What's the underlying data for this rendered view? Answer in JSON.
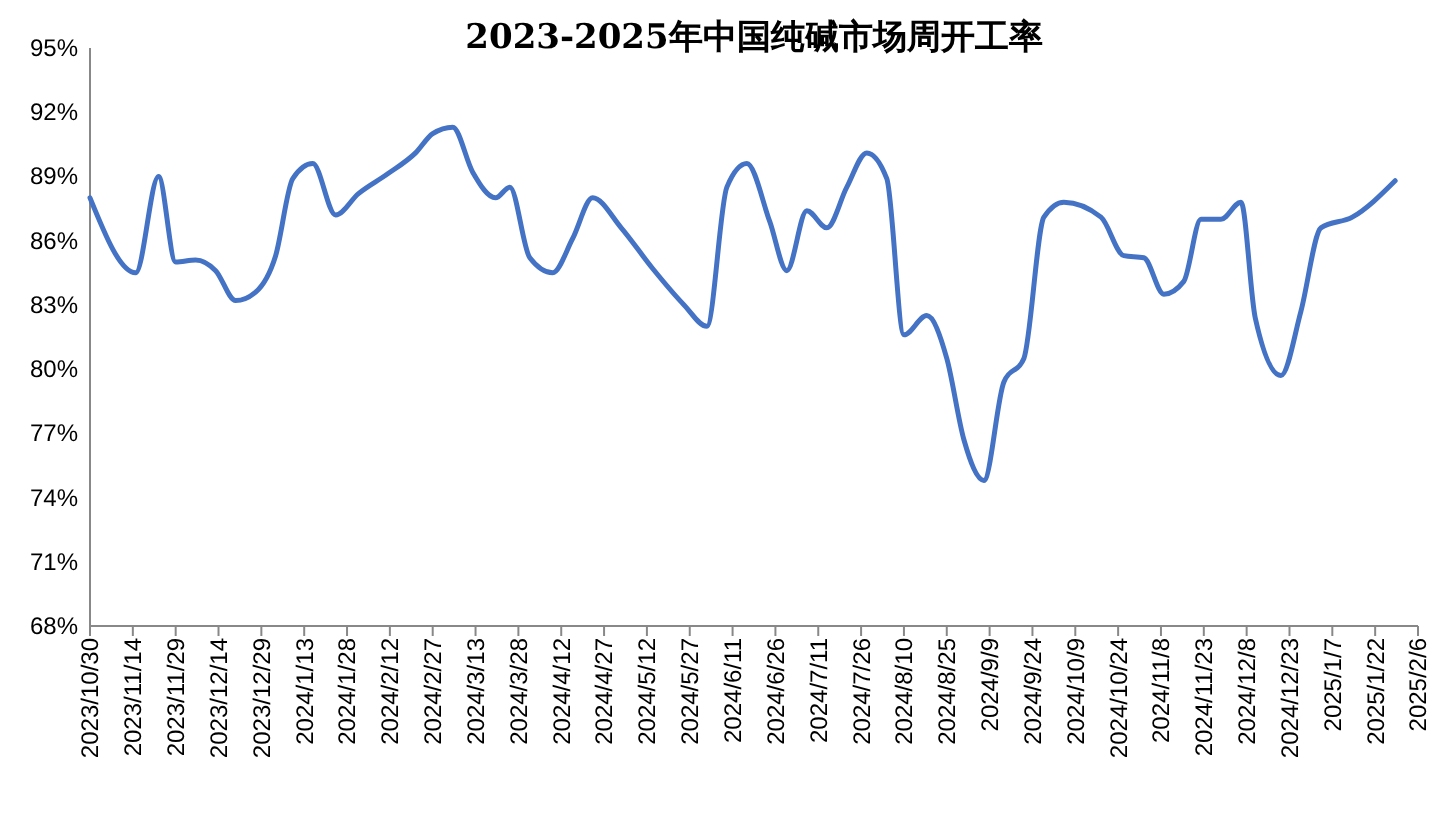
{
  "chart_data": {
    "type": "line",
    "title": "2023-2025年中国纯碱市场周开工率",
    "x": [
      "2023-10-30",
      "2023-11-15",
      "2023-11-23",
      "2023-11-29",
      "2023-12-06",
      "2023-12-13",
      "2023-12-20",
      "2023-12-27",
      "2024-01-03",
      "2024-01-09",
      "2024-01-16",
      "2024-01-24",
      "2024-02-01",
      "2024-02-11",
      "2024-02-21",
      "2024-02-27",
      "2024-03-05",
      "2024-03-12",
      "2024-03-20",
      "2024-03-25",
      "2024-04-01",
      "2024-04-09",
      "2024-04-16",
      "2024-04-23",
      "2024-05-03",
      "2024-05-14",
      "2024-05-25",
      "2024-06-02",
      "2024-06-09",
      "2024-06-16",
      "2024-06-24",
      "2024-06-30",
      "2024-07-07",
      "2024-07-14",
      "2024-07-21",
      "2024-07-28",
      "2024-08-04",
      "2024-08-10",
      "2024-08-18",
      "2024-08-25",
      "2024-08-31",
      "2024-09-07",
      "2024-09-14",
      "2024-09-21",
      "2024-09-28",
      "2024-10-05",
      "2024-10-18",
      "2024-10-26",
      "2024-11-02",
      "2024-11-09",
      "2024-11-16",
      "2024-11-22",
      "2024-11-29",
      "2024-12-06",
      "2024-12-11",
      "2024-12-20",
      "2024-12-27",
      "2025-01-03",
      "2025-01-14",
      "2025-01-29"
    ],
    "series": [
      {
        "color": "#4472c4",
        "values": [
          88.0,
          84.5,
          89.0,
          85.0,
          85.1,
          84.6,
          83.2,
          83.6,
          85.3,
          88.9,
          89.6,
          87.2,
          88.2,
          89.1,
          90.1,
          91.0,
          91.3,
          89.2,
          88.0,
          88.5,
          85.2,
          84.5,
          86.1,
          88.0,
          86.6,
          84.7,
          83.0,
          82.0,
          88.5,
          89.6,
          86.9,
          84.6,
          87.4,
          86.6,
          88.5,
          90.1,
          88.9,
          81.6,
          82.5,
          80.5,
          76.7,
          74.8,
          79.4,
          80.5,
          87.1,
          87.8,
          87.1,
          85.3,
          85.2,
          83.5,
          84.1,
          87.0,
          87.0,
          87.8,
          82.4,
          79.7,
          82.7,
          86.6,
          87.1,
          88.8
        ]
      }
    ],
    "xlim": [
      "2023-10-30",
      "2025-02-06"
    ],
    "xticks": [
      {
        "value": "2023-10-30",
        "label": "2023/10/30"
      },
      {
        "value": "2023-11-14",
        "label": "2023/11/14"
      },
      {
        "value": "2023-11-29",
        "label": "2023/11/29"
      },
      {
        "value": "2023-12-14",
        "label": "2023/12/14"
      },
      {
        "value": "2023-12-29",
        "label": "2023/12/29"
      },
      {
        "value": "2024-01-13",
        "label": "2024/1/13"
      },
      {
        "value": "2024-01-28",
        "label": "2024/1/28"
      },
      {
        "value": "2024-02-12",
        "label": "2024/2/12"
      },
      {
        "value": "2024-02-27",
        "label": "2024/2/27"
      },
      {
        "value": "2024-03-13",
        "label": "2024/3/13"
      },
      {
        "value": "2024-03-28",
        "label": "2024/3/28"
      },
      {
        "value": "2024-04-12",
        "label": "2024/4/12"
      },
      {
        "value": "2024-04-27",
        "label": "2024/4/27"
      },
      {
        "value": "2024-05-12",
        "label": "2024/5/12"
      },
      {
        "value": "2024-05-27",
        "label": "2024/5/27"
      },
      {
        "value": "2024-06-11",
        "label": "2024/6/11"
      },
      {
        "value": "2024-06-26",
        "label": "2024/6/26"
      },
      {
        "value": "2024-07-11",
        "label": "2024/7/11"
      },
      {
        "value": "2024-07-26",
        "label": "2024/7/26"
      },
      {
        "value": "2024-08-10",
        "label": "2024/8/10"
      },
      {
        "value": "2024-08-25",
        "label": "2024/8/25"
      },
      {
        "value": "2024-09-09",
        "label": "2024/9/9"
      },
      {
        "value": "2024-09-24",
        "label": "2024/9/24"
      },
      {
        "value": "2024-10-09",
        "label": "2024/10/9"
      },
      {
        "value": "2024-10-24",
        "label": "2024/10/24"
      },
      {
        "value": "2024-11-08",
        "label": "2024/11/8"
      },
      {
        "value": "2024-11-23",
        "label": "2024/11/23"
      },
      {
        "value": "2024-12-08",
        "label": "2024/12/8"
      },
      {
        "value": "2024-12-23",
        "label": "2024/12/23"
      },
      {
        "value": "2025-01-07",
        "label": "2025/1/7"
      },
      {
        "value": "2025-01-22",
        "label": "2025/1/22"
      },
      {
        "value": "2025-02-06",
        "label": "2025/2/6"
      }
    ],
    "ylim": [
      68,
      95
    ],
    "yticks": [
      {
        "value": 68,
        "label": "68%"
      },
      {
        "value": 71,
        "label": "71%"
      },
      {
        "value": 74,
        "label": "74%"
      },
      {
        "value": 77,
        "label": "77%"
      },
      {
        "value": 80,
        "label": "80%"
      },
      {
        "value": 83,
        "label": "83%"
      },
      {
        "value": 86,
        "label": "86%"
      },
      {
        "value": 89,
        "label": "89%"
      },
      {
        "value": 92,
        "label": "92%"
      },
      {
        "value": 95,
        "label": "95%"
      }
    ],
    "grid": false,
    "marker": "none",
    "line_style": "solid"
  }
}
